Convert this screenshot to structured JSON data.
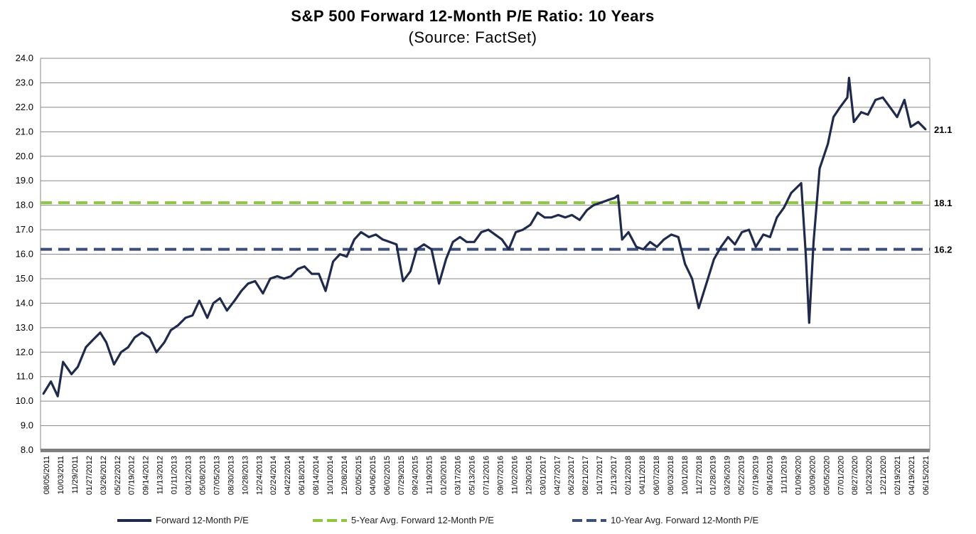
{
  "chart_data": {
    "type": "line",
    "title": "S&P 500 Forward 12-Month P/E Ratio: 10 Years",
    "subtitle": "(Source: FactSet)",
    "ylim": [
      8.0,
      24.0
    ],
    "yticks": [
      "8.0",
      "9.0",
      "10.0",
      "11.0",
      "12.0",
      "13.0",
      "14.0",
      "15.0",
      "16.0",
      "17.0",
      "18.0",
      "19.0",
      "20.0",
      "21.0",
      "22.0",
      "23.0",
      "24.0"
    ],
    "xticks": [
      "08/05/2011",
      "10/03/2011",
      "11/29/2011",
      "01/27/2012",
      "03/26/2012",
      "05/22/2012",
      "07/19/2012",
      "09/14/2012",
      "11/13/2012",
      "01/11/2013",
      "03/12/2013",
      "05/08/2013",
      "07/05/2013",
      "08/30/2013",
      "10/28/2013",
      "12/24/2013",
      "02/24/2014",
      "04/22/2014",
      "06/18/2014",
      "08/14/2014",
      "10/10/2014",
      "12/08/2014",
      "02/05/2015",
      "04/06/2015",
      "06/02/2015",
      "07/29/2015",
      "09/24/2015",
      "11/19/2015",
      "01/20/2016",
      "03/17/2016",
      "05/13/2016",
      "07/12/2016",
      "09/07/2016",
      "11/02/2016",
      "12/30/2016",
      "03/01/2017",
      "04/27/2017",
      "06/23/2017",
      "08/21/2017",
      "10/17/2017",
      "12/13/2017",
      "02/12/2018",
      "04/11/2018",
      "06/07/2018",
      "08/03/2018",
      "10/01/2018",
      "11/27/2018",
      "01/28/2019",
      "03/26/2019",
      "05/22/2019",
      "07/19/2019",
      "09/16/2019",
      "11/11/2019",
      "01/09/2020",
      "03/09/2020",
      "05/05/2020",
      "07/01/2020",
      "08/27/2020",
      "10/23/2020",
      "12/21/2020",
      "02/19/2021",
      "04/19/2021",
      "06/15/2021"
    ],
    "series": [
      {
        "name": "Forward 12-Month P/E",
        "color": "#1f2a4d",
        "points": [
          [
            "08/05/2011",
            10.3
          ],
          [
            "09/05/2011",
            10.8
          ],
          [
            "10/03/2011",
            10.2
          ],
          [
            "10/25/2011",
            11.6
          ],
          [
            "11/29/2011",
            11.1
          ],
          [
            "12/25/2011",
            11.4
          ],
          [
            "01/27/2012",
            12.2
          ],
          [
            "02/25/2012",
            12.5
          ],
          [
            "03/26/2012",
            12.8
          ],
          [
            "04/20/2012",
            12.4
          ],
          [
            "05/22/2012",
            11.5
          ],
          [
            "06/20/2012",
            12.0
          ],
          [
            "07/19/2012",
            12.2
          ],
          [
            "08/15/2012",
            12.6
          ],
          [
            "09/14/2012",
            12.8
          ],
          [
            "10/15/2012",
            12.6
          ],
          [
            "11/13/2012",
            12.0
          ],
          [
            "12/15/2012",
            12.4
          ],
          [
            "01/11/2013",
            12.9
          ],
          [
            "02/10/2013",
            13.1
          ],
          [
            "03/12/2013",
            13.4
          ],
          [
            "04/10/2013",
            13.5
          ],
          [
            "05/08/2013",
            14.1
          ],
          [
            "06/10/2013",
            13.4
          ],
          [
            "07/05/2013",
            14.0
          ],
          [
            "08/01/2013",
            14.2
          ],
          [
            "08/30/2013",
            13.7
          ],
          [
            "09/30/2013",
            14.1
          ],
          [
            "10/28/2013",
            14.5
          ],
          [
            "11/25/2013",
            14.8
          ],
          [
            "12/24/2013",
            14.9
          ],
          [
            "01/25/2014",
            14.4
          ],
          [
            "02/24/2014",
            15.0
          ],
          [
            "03/25/2014",
            15.1
          ],
          [
            "04/22/2014",
            15.0
          ],
          [
            "05/20/2014",
            15.1
          ],
          [
            "06/18/2014",
            15.4
          ],
          [
            "07/15/2014",
            15.5
          ],
          [
            "08/14/2014",
            15.2
          ],
          [
            "09/12/2014",
            15.2
          ],
          [
            "10/10/2014",
            14.5
          ],
          [
            "11/10/2014",
            15.7
          ],
          [
            "12/08/2014",
            16.0
          ],
          [
            "01/05/2015",
            15.9
          ],
          [
            "02/05/2015",
            16.6
          ],
          [
            "03/05/2015",
            16.9
          ],
          [
            "04/06/2015",
            16.7
          ],
          [
            "05/05/2015",
            16.8
          ],
          [
            "06/02/2015",
            16.6
          ],
          [
            "07/01/2015",
            16.5
          ],
          [
            "07/29/2015",
            16.4
          ],
          [
            "08/25/2015",
            14.9
          ],
          [
            "09/24/2015",
            15.3
          ],
          [
            "10/20/2015",
            16.2
          ],
          [
            "11/19/2015",
            16.4
          ],
          [
            "12/20/2015",
            16.2
          ],
          [
            "01/20/2016",
            14.8
          ],
          [
            "02/18/2016",
            15.8
          ],
          [
            "03/17/2016",
            16.5
          ],
          [
            "04/15/2016",
            16.7
          ],
          [
            "05/13/2016",
            16.5
          ],
          [
            "06/13/2016",
            16.5
          ],
          [
            "07/12/2016",
            16.9
          ],
          [
            "08/10/2016",
            17.0
          ],
          [
            "09/07/2016",
            16.8
          ],
          [
            "10/05/2016",
            16.6
          ],
          [
            "11/02/2016",
            16.2
          ],
          [
            "12/01/2016",
            16.9
          ],
          [
            "12/30/2016",
            17.0
          ],
          [
            "01/30/2017",
            17.2
          ],
          [
            "03/01/2017",
            17.7
          ],
          [
            "03/30/2017",
            17.5
          ],
          [
            "04/27/2017",
            17.5
          ],
          [
            "05/25/2017",
            17.6
          ],
          [
            "06/23/2017",
            17.5
          ],
          [
            "07/20/2017",
            17.6
          ],
          [
            "08/21/2017",
            17.4
          ],
          [
            "09/20/2017",
            17.8
          ],
          [
            "10/17/2017",
            18.0
          ],
          [
            "11/15/2017",
            18.1
          ],
          [
            "12/13/2017",
            18.2
          ],
          [
            "01/12/2018",
            18.3
          ],
          [
            "01/26/2018",
            18.4
          ],
          [
            "02/12/2018",
            16.6
          ],
          [
            "03/10/2018",
            16.9
          ],
          [
            "04/11/2018",
            16.3
          ],
          [
            "05/10/2018",
            16.2
          ],
          [
            "06/07/2018",
            16.5
          ],
          [
            "07/05/2018",
            16.3
          ],
          [
            "08/03/2018",
            16.6
          ],
          [
            "09/02/2018",
            16.8
          ],
          [
            "10/01/2018",
            16.7
          ],
          [
            "10/29/2018",
            15.6
          ],
          [
            "11/27/2018",
            15.0
          ],
          [
            "12/24/2018",
            13.8
          ],
          [
            "01/28/2019",
            14.9
          ],
          [
            "02/25/2019",
            15.8
          ],
          [
            "03/26/2019",
            16.3
          ],
          [
            "04/24/2019",
            16.7
          ],
          [
            "05/22/2019",
            16.4
          ],
          [
            "06/20/2019",
            16.9
          ],
          [
            "07/19/2019",
            17.0
          ],
          [
            "08/16/2019",
            16.3
          ],
          [
            "09/16/2019",
            16.8
          ],
          [
            "10/14/2019",
            16.7
          ],
          [
            "11/11/2019",
            17.5
          ],
          [
            "12/10/2019",
            17.9
          ],
          [
            "01/09/2020",
            18.5
          ],
          [
            "02/19/2020",
            18.9
          ],
          [
            "03/09/2020",
            16.0
          ],
          [
            "03/23/2020",
            13.2
          ],
          [
            "04/10/2020",
            16.5
          ],
          [
            "05/05/2020",
            19.5
          ],
          [
            "06/08/2020",
            20.5
          ],
          [
            "07/01/2020",
            21.6
          ],
          [
            "07/28/2020",
            22.0
          ],
          [
            "08/27/2020",
            22.4
          ],
          [
            "09/03/2020",
            23.2
          ],
          [
            "09/23/2020",
            21.4
          ],
          [
            "10/23/2020",
            21.8
          ],
          [
            "11/20/2020",
            21.7
          ],
          [
            "12/21/2020",
            22.3
          ],
          [
            "01/20/2021",
            22.4
          ],
          [
            "02/19/2021",
            22.0
          ],
          [
            "03/20/2021",
            21.6
          ],
          [
            "04/19/2021",
            22.3
          ],
          [
            "05/15/2021",
            21.2
          ],
          [
            "06/15/2021",
            21.4
          ],
          [
            "07/15/2021",
            21.1
          ]
        ]
      },
      {
        "name": "5-Year Avg. Forward 12-Month P/E",
        "color": "#8dc63f",
        "value": 18.1,
        "label": "18.1"
      },
      {
        "name": "10-Year Avg. Forward 12-Month P/E",
        "color": "#3b4f7a",
        "value": 16.2,
        "label": "16.2"
      }
    ],
    "last_value_label": "21.1",
    "grid": true,
    "legend_position": "bottom"
  }
}
